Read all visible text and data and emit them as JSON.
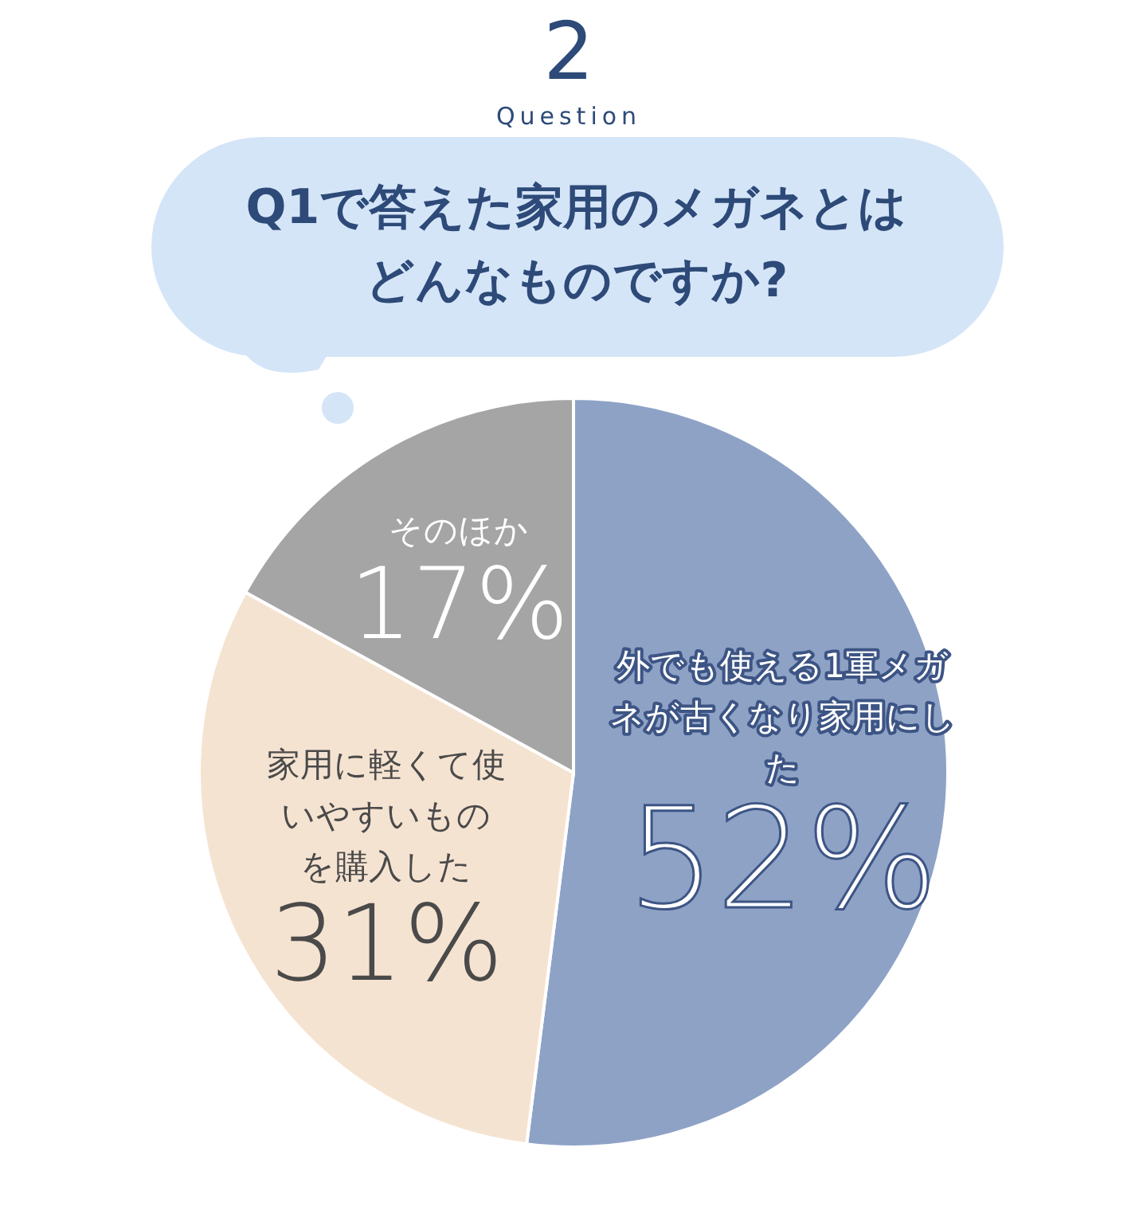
{
  "chart_data": {
    "type": "pie",
    "title": "Q1で答えた家用のメガネとはどんなものですか?",
    "annotations": [
      "Question",
      "2"
    ],
    "categories": [
      "外でも使える1軍メガネが古くなり家用にした",
      "家用に軽くて使いやすいものを購入した",
      "そのほか"
    ],
    "values": [
      52,
      31,
      17
    ],
    "value_labels": [
      "52%",
      "31%",
      "17%"
    ],
    "colors": [
      "#8ea2c6",
      "#f5e3d1",
      "#a5a5a5"
    ]
  }
}
